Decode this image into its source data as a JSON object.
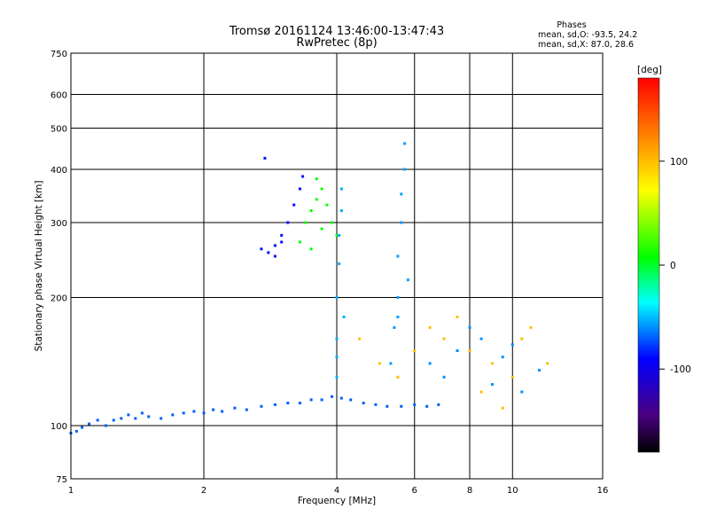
{
  "chart_data": {
    "type": "scatter",
    "title": "Tromsø 20161124 13:46:00-13:47:43",
    "subtitle": "RwPretec (8p)",
    "stats": {
      "heading": "Phases",
      "line1": "mean, sd,O: -93.5, 24.2",
      "line2": "mean, sd,X: 87.0, 28.6"
    },
    "xlabel": "Frequency [MHz]",
    "ylabel": "Stationary phase Virtual Height [km]",
    "xscale": "log",
    "yscale": "log",
    "xlim": [
      1,
      16
    ],
    "ylim": [
      75,
      750
    ],
    "xticks": [
      1,
      2,
      4,
      6,
      8,
      10,
      16
    ],
    "yticks": [
      75,
      100,
      200,
      300,
      400,
      500,
      600,
      750
    ],
    "grid": true,
    "colorbar": {
      "label": "[deg]",
      "range": [
        -180,
        180
      ],
      "ticks": [
        100,
        0,
        -100
      ],
      "colormap": "rainbow"
    },
    "series": [
      {
        "trace": "low-layer-trace",
        "phase": -110,
        "points": [
          [
            1.0,
            96
          ],
          [
            1.03,
            97
          ],
          [
            1.06,
            99
          ],
          [
            1.1,
            101
          ],
          [
            1.15,
            103
          ],
          [
            1.2,
            100
          ],
          [
            1.25,
            103
          ],
          [
            1.3,
            104
          ],
          [
            1.35,
            106
          ],
          [
            1.4,
            104
          ],
          [
            1.45,
            107
          ],
          [
            1.5,
            105
          ],
          [
            1.6,
            104
          ],
          [
            1.7,
            106
          ],
          [
            1.8,
            107
          ],
          [
            1.9,
            108
          ],
          [
            2.0,
            107
          ],
          [
            2.1,
            109
          ],
          [
            2.2,
            108
          ],
          [
            2.35,
            110
          ],
          [
            2.5,
            109
          ],
          [
            2.7,
            111
          ],
          [
            2.9,
            112
          ],
          [
            3.1,
            113
          ],
          [
            3.3,
            113
          ],
          [
            3.5,
            115
          ],
          [
            3.7,
            115
          ],
          [
            3.9,
            117
          ],
          [
            4.1,
            116
          ],
          [
            4.3,
            115
          ],
          [
            4.6,
            113
          ],
          [
            4.9,
            112
          ],
          [
            5.2,
            111
          ],
          [
            5.6,
            111
          ],
          [
            6.0,
            112
          ],
          [
            6.4,
            111
          ],
          [
            6.8,
            112
          ]
        ]
      },
      {
        "trace": "purple-cluster",
        "phase": -135,
        "points": [
          [
            2.7,
            260
          ],
          [
            2.8,
            255
          ],
          [
            2.9,
            265
          ],
          [
            3.0,
            280
          ],
          [
            3.1,
            300
          ],
          [
            3.2,
            330
          ],
          [
            3.3,
            360
          ],
          [
            3.35,
            385
          ],
          [
            2.9,
            250
          ],
          [
            3.0,
            270
          ],
          [
            2.75,
            425
          ]
        ]
      },
      {
        "trace": "green-cluster",
        "phase": 20,
        "points": [
          [
            3.3,
            270
          ],
          [
            3.4,
            300
          ],
          [
            3.5,
            320
          ],
          [
            3.6,
            340
          ],
          [
            3.7,
            360
          ],
          [
            3.8,
            330
          ],
          [
            3.9,
            300
          ],
          [
            4.0,
            280
          ],
          [
            3.5,
            260
          ],
          [
            3.7,
            290
          ],
          [
            3.6,
            380
          ]
        ]
      },
      {
        "trace": "blue-column-4MHz",
        "phase": -85,
        "points": [
          [
            4.0,
            130
          ],
          [
            4.0,
            160
          ],
          [
            4.0,
            200
          ],
          [
            4.05,
            240
          ],
          [
            4.05,
            280
          ],
          [
            4.1,
            320
          ],
          [
            4.1,
            360
          ],
          [
            4.15,
            180
          ],
          [
            4.0,
            145
          ]
        ]
      },
      {
        "trace": "blue-column-5.5MHz",
        "phase": -90,
        "points": [
          [
            5.3,
            140
          ],
          [
            5.4,
            170
          ],
          [
            5.5,
            200
          ],
          [
            5.5,
            250
          ],
          [
            5.6,
            300
          ],
          [
            5.6,
            350
          ],
          [
            5.7,
            400
          ],
          [
            5.7,
            460
          ],
          [
            5.5,
            180
          ],
          [
            5.8,
            220
          ]
        ]
      },
      {
        "trace": "scattered-x-mode",
        "phase": 120,
        "points": [
          [
            4.5,
            160
          ],
          [
            5.0,
            140
          ],
          [
            5.5,
            130
          ],
          [
            6.0,
            150
          ],
          [
            6.5,
            170
          ],
          [
            7.0,
            160
          ],
          [
            7.5,
            180
          ],
          [
            8.0,
            150
          ],
          [
            8.5,
            120
          ],
          [
            9.0,
            140
          ],
          [
            9.5,
            110
          ],
          [
            10.0,
            130
          ],
          [
            10.5,
            160
          ],
          [
            11.0,
            170
          ],
          [
            12.0,
            140
          ]
        ]
      },
      {
        "trace": "scattered-o-mode",
        "phase": -95,
        "points": [
          [
            6.5,
            140
          ],
          [
            7.0,
            130
          ],
          [
            7.5,
            150
          ],
          [
            8.0,
            170
          ],
          [
            8.5,
            160
          ],
          [
            9.0,
            125
          ],
          [
            9.5,
            145
          ],
          [
            10.0,
            155
          ],
          [
            10.5,
            120
          ],
          [
            11.5,
            135
          ]
        ]
      }
    ]
  }
}
